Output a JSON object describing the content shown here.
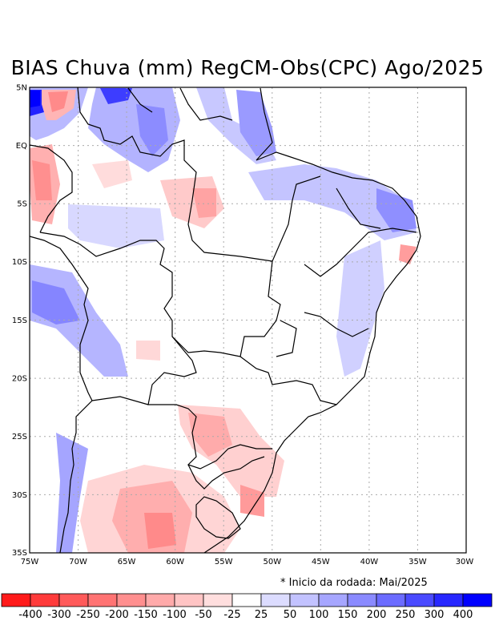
{
  "title": "BIAS Chuva (mm) RegCM-Obs(CPC) Ago/2025",
  "note": "* Inicio da rodada: Mai/2025",
  "axes": {
    "lat_labels": [
      "5N",
      "EQ",
      "5S",
      "10S",
      "15S",
      "20S",
      "25S",
      "30S",
      "35S"
    ],
    "lon_labels": [
      "75W",
      "70W",
      "65W",
      "60W",
      "55W",
      "50W",
      "45W",
      "40W",
      "35W",
      "30W"
    ]
  },
  "colorbar": {
    "labels": [
      "-400",
      "-300",
      "-250",
      "-200",
      "-150",
      "-100",
      "-50",
      "-25",
      "25",
      "50",
      "100",
      "150",
      "200",
      "250",
      "300",
      "400"
    ],
    "colors": [
      "#ff1a1a",
      "#ff3b3b",
      "#ff5a5a",
      "#ff7373",
      "#ff8f8f",
      "#ffaaaa",
      "#ffc4c4",
      "#ffdede",
      "#ffffff",
      "#dcdcff",
      "#c2c2ff",
      "#a6a6ff",
      "#8a8aff",
      "#6b6bff",
      "#4a4aff",
      "#2727ff",
      "#0000ff"
    ]
  },
  "colors": {
    "grid": "#aaaaaa",
    "border": "#000000"
  }
}
